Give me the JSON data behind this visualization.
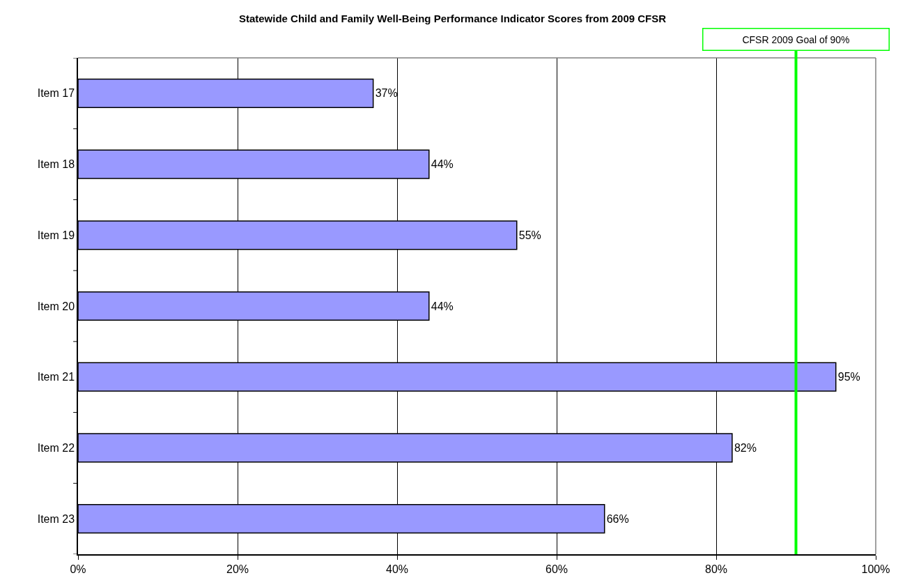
{
  "chart_data": {
    "type": "bar",
    "orientation": "horizontal",
    "title": "Statewide Child and Family Well-Being Performance Indicator Scores from 2009 CFSR",
    "categories": [
      "Item 17",
      "Item 18",
      "Item 19",
      "Item 20",
      "Item 21",
      "Item 22",
      "Item 23"
    ],
    "values": [
      37,
      44,
      55,
      44,
      95,
      82,
      66
    ],
    "color": "#9999ff",
    "value_labels": [
      "37%",
      "44%",
      "55%",
      "44%",
      "95%",
      "82%",
      "66%"
    ],
    "xlim": [
      0,
      100
    ],
    "xticks": [
      {
        "value": 0,
        "label": "0%"
      },
      {
        "value": 20,
        "label": "20%"
      },
      {
        "value": 40,
        "label": "40%"
      },
      {
        "value": 60,
        "label": "60%"
      },
      {
        "value": 80,
        "label": "80%"
      },
      {
        "value": 100,
        "label": "100%"
      }
    ],
    "grid": "x",
    "ref_lines": [
      {
        "axis": "x",
        "value": 90,
        "label": "CFSR 2009 Goal of 90%",
        "color": "#00ff00"
      }
    ]
  }
}
